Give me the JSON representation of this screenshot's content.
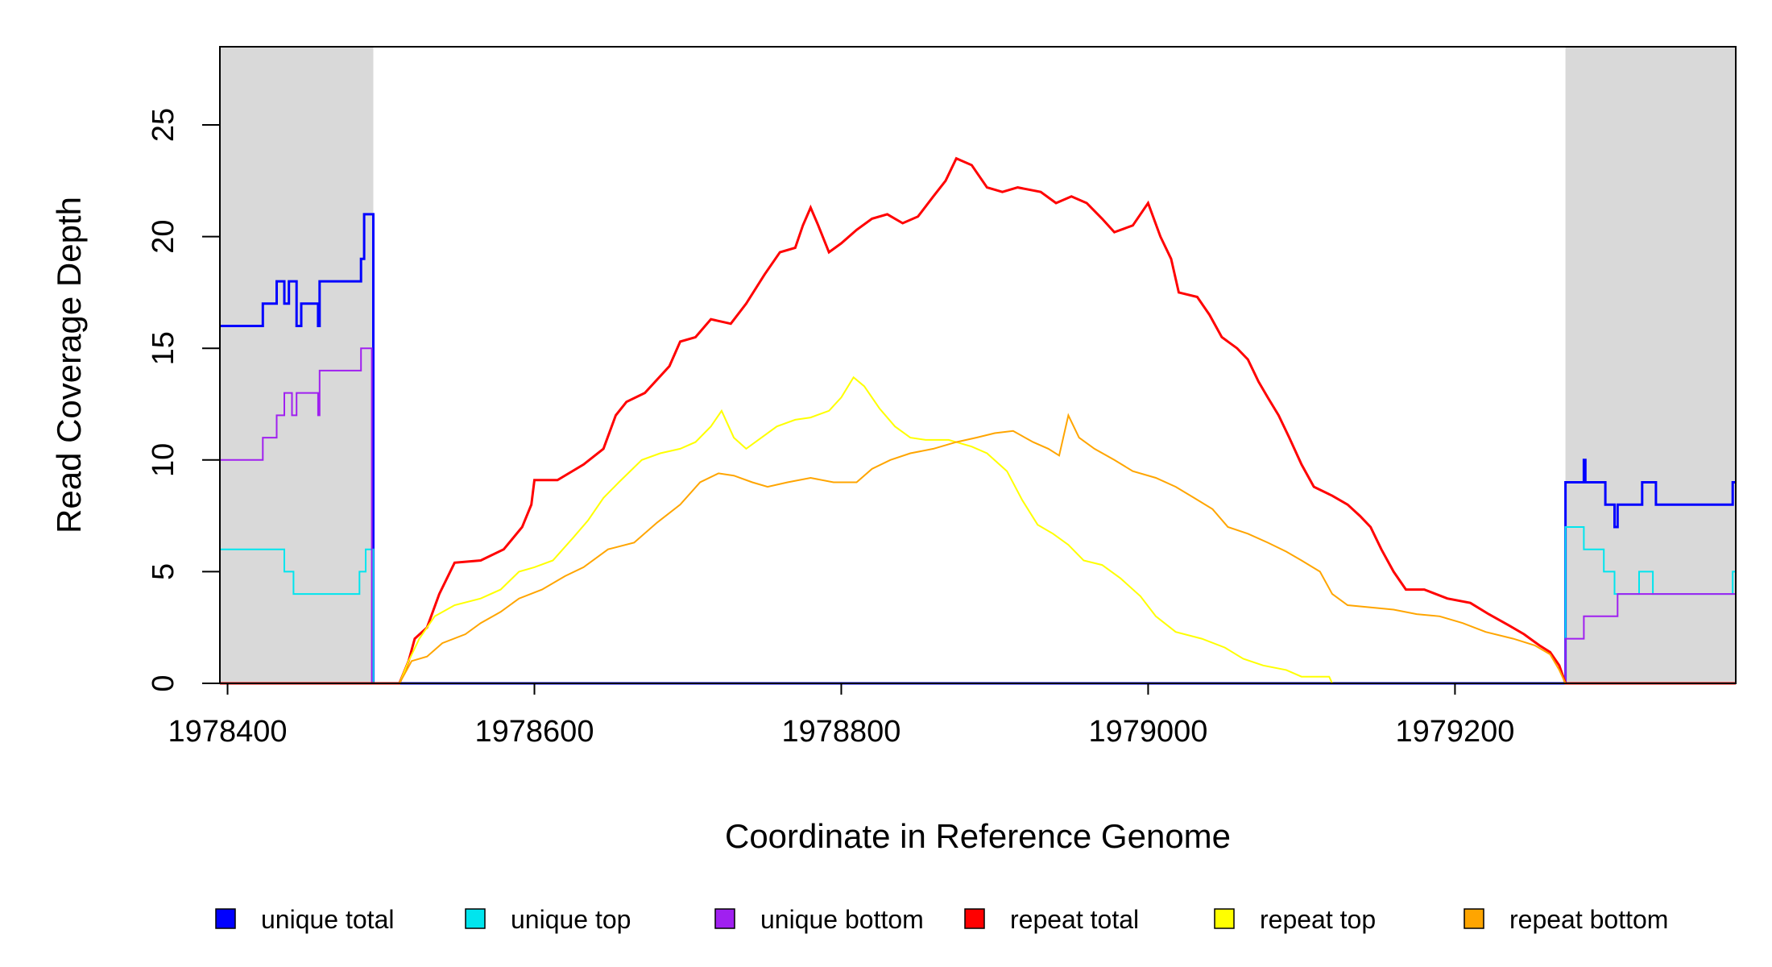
{
  "chart_data": {
    "type": "line",
    "title": "",
    "xlabel": "Coordinate in Reference Genome",
    "ylabel": "Read Coverage Depth",
    "xlim": [
      1978395,
      1979383
    ],
    "ylim": [
      0,
      28.5
    ],
    "xticks": [
      1978400,
      1978600,
      1978800,
      1979000,
      1979200
    ],
    "yticks": [
      0,
      5,
      10,
      15,
      20,
      25
    ],
    "grid": false,
    "legend_position": "bottom",
    "shaded_regions": [
      {
        "x": [
          1978395,
          1978495
        ],
        "color": "#d9d9d9"
      },
      {
        "x": [
          1979272,
          1979383
        ],
        "color": "#d9d9d9"
      }
    ],
    "series": [
      {
        "name": "unique total",
        "color": "#0000ff",
        "width": 3,
        "points": [
          [
            1978395,
            16
          ],
          [
            1978423,
            16
          ],
          [
            1978423,
            17
          ],
          [
            1978432,
            17
          ],
          [
            1978432,
            18
          ],
          [
            1978437,
            18
          ],
          [
            1978437,
            17
          ],
          [
            1978440,
            17
          ],
          [
            1978440,
            18
          ],
          [
            1978445,
            18
          ],
          [
            1978445,
            16
          ],
          [
            1978448,
            16
          ],
          [
            1978448,
            17
          ],
          [
            1978459,
            17
          ],
          [
            1978459,
            16
          ],
          [
            1978460,
            16
          ],
          [
            1978460,
            18
          ],
          [
            1978487,
            18
          ],
          [
            1978487,
            19
          ],
          [
            1978489,
            19
          ],
          [
            1978489,
            21
          ],
          [
            1978495,
            21
          ],
          [
            1978495,
            0
          ],
          [
            1979272,
            0
          ],
          [
            1979272,
            9
          ],
          [
            1979284,
            9
          ],
          [
            1979284,
            10
          ],
          [
            1979285,
            10
          ],
          [
            1979285,
            9
          ],
          [
            1979298,
            9
          ],
          [
            1979298,
            8
          ],
          [
            1979304,
            8
          ],
          [
            1979304,
            7
          ],
          [
            1979306,
            7
          ],
          [
            1979306,
            8
          ],
          [
            1979322,
            8
          ],
          [
            1979322,
            9
          ],
          [
            1979331,
            9
          ],
          [
            1979331,
            8
          ],
          [
            1979381,
            8
          ],
          [
            1979381,
            9
          ],
          [
            1979383,
            9
          ]
        ]
      },
      {
        "name": "unique top",
        "color": "#00e5ee",
        "width": 2,
        "points": [
          [
            1978395,
            6
          ],
          [
            1978437,
            6
          ],
          [
            1978437,
            5
          ],
          [
            1978443,
            5
          ],
          [
            1978443,
            4
          ],
          [
            1978486,
            4
          ],
          [
            1978486,
            5
          ],
          [
            1978490,
            5
          ],
          [
            1978490,
            6
          ],
          [
            1978495,
            6
          ],
          [
            1978495,
            0
          ],
          [
            1979272,
            0
          ],
          [
            1979272,
            7
          ],
          [
            1979284,
            7
          ],
          [
            1979284,
            6
          ],
          [
            1979297,
            6
          ],
          [
            1979297,
            5
          ],
          [
            1979304,
            5
          ],
          [
            1979304,
            4
          ],
          [
            1979320,
            4
          ],
          [
            1979320,
            5
          ],
          [
            1979329,
            5
          ],
          [
            1979329,
            4
          ],
          [
            1979381,
            4
          ],
          [
            1979381,
            5
          ],
          [
            1979383,
            5
          ]
        ]
      },
      {
        "name": "unique bottom",
        "color": "#a020f0",
        "width": 2,
        "points": [
          [
            1978395,
            10
          ],
          [
            1978423,
            10
          ],
          [
            1978423,
            11
          ],
          [
            1978432,
            11
          ],
          [
            1978432,
            12
          ],
          [
            1978437,
            12
          ],
          [
            1978437,
            13
          ],
          [
            1978442,
            13
          ],
          [
            1978442,
            12
          ],
          [
            1978445,
            12
          ],
          [
            1978445,
            13
          ],
          [
            1978459,
            13
          ],
          [
            1978459,
            12
          ],
          [
            1978460,
            12
          ],
          [
            1978460,
            14
          ],
          [
            1978487,
            14
          ],
          [
            1978487,
            15
          ],
          [
            1978494,
            15
          ],
          [
            1978494,
            0
          ],
          [
            1979272,
            0
          ],
          [
            1979272,
            2
          ],
          [
            1979284,
            2
          ],
          [
            1979284,
            3
          ],
          [
            1979306,
            3
          ],
          [
            1979306,
            4
          ],
          [
            1979383,
            4
          ]
        ]
      },
      {
        "name": "repeat total",
        "color": "#ff0000",
        "width": 3,
        "points": [
          [
            1978395,
            0
          ],
          [
            1978512,
            0
          ],
          [
            1978518,
            1
          ],
          [
            1978522,
            2
          ],
          [
            1978530,
            2.5
          ],
          [
            1978538,
            4
          ],
          [
            1978548,
            5.4
          ],
          [
            1978565,
            5.5
          ],
          [
            1978580,
            6
          ],
          [
            1978592,
            7
          ],
          [
            1978598,
            8
          ],
          [
            1978600,
            9.1
          ],
          [
            1978615,
            9.1
          ],
          [
            1978632,
            9.8
          ],
          [
            1978645,
            10.5
          ],
          [
            1978653,
            12
          ],
          [
            1978660,
            12.6
          ],
          [
            1978672,
            13
          ],
          [
            1978688,
            14.2
          ],
          [
            1978695,
            15.3
          ],
          [
            1978705,
            15.5
          ],
          [
            1978715,
            16.3
          ],
          [
            1978728,
            16.1
          ],
          [
            1978738,
            17
          ],
          [
            1978750,
            18.3
          ],
          [
            1978760,
            19.3
          ],
          [
            1978770,
            19.5
          ],
          [
            1978775,
            20.5
          ],
          [
            1978780,
            21.3
          ],
          [
            1978785,
            20.5
          ],
          [
            1978792,
            19.3
          ],
          [
            1978800,
            19.7
          ],
          [
            1978810,
            20.3
          ],
          [
            1978820,
            20.8
          ],
          [
            1978830,
            21
          ],
          [
            1978840,
            20.6
          ],
          [
            1978850,
            20.9
          ],
          [
            1978860,
            21.8
          ],
          [
            1978868,
            22.5
          ],
          [
            1978875,
            23.5
          ],
          [
            1978885,
            23.2
          ],
          [
            1978895,
            22.2
          ],
          [
            1978905,
            22
          ],
          [
            1978915,
            22.2
          ],
          [
            1978930,
            22
          ],
          [
            1978940,
            21.5
          ],
          [
            1978950,
            21.8
          ],
          [
            1978960,
            21.5
          ],
          [
            1978970,
            20.8
          ],
          [
            1978978,
            20.2
          ],
          [
            1978990,
            20.5
          ],
          [
            1979000,
            21.5
          ],
          [
            1979008,
            20
          ],
          [
            1979015,
            19
          ],
          [
            1979020,
            17.5
          ],
          [
            1979032,
            17.3
          ],
          [
            1979040,
            16.5
          ],
          [
            1979048,
            15.5
          ],
          [
            1979058,
            15
          ],
          [
            1979065,
            14.5
          ],
          [
            1979072,
            13.5
          ],
          [
            1979078,
            12.8
          ],
          [
            1979085,
            12
          ],
          [
            1979092,
            11
          ],
          [
            1979100,
            9.8
          ],
          [
            1979108,
            8.8
          ],
          [
            1979120,
            8.4
          ],
          [
            1979130,
            8
          ],
          [
            1979138,
            7.5
          ],
          [
            1979145,
            7
          ],
          [
            1979152,
            6
          ],
          [
            1979160,
            5
          ],
          [
            1979168,
            4.2
          ],
          [
            1979180,
            4.2
          ],
          [
            1979195,
            3.8
          ],
          [
            1979210,
            3.6
          ],
          [
            1979222,
            3.1
          ],
          [
            1979235,
            2.6
          ],
          [
            1979245,
            2.2
          ],
          [
            1979255,
            1.7
          ],
          [
            1979262,
            1.4
          ],
          [
            1979268,
            0.8
          ],
          [
            1979272,
            0
          ],
          [
            1979383,
            0
          ]
        ]
      },
      {
        "name": "repeat top",
        "color": "#ffff00",
        "width": 2,
        "points": [
          [
            1978395,
            0
          ],
          [
            1978512,
            0
          ],
          [
            1978518,
            1
          ],
          [
            1978525,
            2
          ],
          [
            1978535,
            3
          ],
          [
            1978548,
            3.5
          ],
          [
            1978565,
            3.8
          ],
          [
            1978578,
            4.2
          ],
          [
            1978590,
            5
          ],
          [
            1978600,
            5.2
          ],
          [
            1978612,
            5.5
          ],
          [
            1978625,
            6.5
          ],
          [
            1978635,
            7.3
          ],
          [
            1978645,
            8.3
          ],
          [
            1978655,
            9
          ],
          [
            1978670,
            10
          ],
          [
            1978682,
            10.3
          ],
          [
            1978695,
            10.5
          ],
          [
            1978705,
            10.8
          ],
          [
            1978715,
            11.5
          ],
          [
            1978722,
            12.2
          ],
          [
            1978730,
            11
          ],
          [
            1978738,
            10.5
          ],
          [
            1978748,
            11
          ],
          [
            1978758,
            11.5
          ],
          [
            1978770,
            11.8
          ],
          [
            1978780,
            11.9
          ],
          [
            1978792,
            12.2
          ],
          [
            1978800,
            12.8
          ],
          [
            1978808,
            13.7
          ],
          [
            1978815,
            13.3
          ],
          [
            1978825,
            12.3
          ],
          [
            1978835,
            11.5
          ],
          [
            1978845,
            11
          ],
          [
            1978855,
            10.9
          ],
          [
            1978870,
            10.9
          ],
          [
            1978885,
            10.6
          ],
          [
            1978895,
            10.3
          ],
          [
            1978908,
            9.5
          ],
          [
            1978918,
            8.2
          ],
          [
            1978928,
            7.1
          ],
          [
            1978938,
            6.7
          ],
          [
            1978948,
            6.2
          ],
          [
            1978958,
            5.5
          ],
          [
            1978970,
            5.3
          ],
          [
            1978982,
            4.7
          ],
          [
            1978995,
            3.9
          ],
          [
            1979005,
            3
          ],
          [
            1979018,
            2.3
          ],
          [
            1979035,
            2
          ],
          [
            1979050,
            1.6
          ],
          [
            1979062,
            1.1
          ],
          [
            1979075,
            0.8
          ],
          [
            1979090,
            0.6
          ],
          [
            1979100,
            0.3
          ],
          [
            1979118,
            0.3
          ],
          [
            1979120,
            0
          ],
          [
            1979383,
            0
          ]
        ]
      },
      {
        "name": "repeat bottom",
        "color": "#ffa500",
        "width": 2,
        "points": [
          [
            1978395,
            0
          ],
          [
            1978512,
            0
          ],
          [
            1978520,
            1
          ],
          [
            1978530,
            1.2
          ],
          [
            1978540,
            1.8
          ],
          [
            1978555,
            2.2
          ],
          [
            1978565,
            2.7
          ],
          [
            1978578,
            3.2
          ],
          [
            1978590,
            3.8
          ],
          [
            1978605,
            4.2
          ],
          [
            1978620,
            4.8
          ],
          [
            1978632,
            5.2
          ],
          [
            1978648,
            6
          ],
          [
            1978665,
            6.3
          ],
          [
            1978680,
            7.2
          ],
          [
            1978695,
            8
          ],
          [
            1978708,
            9
          ],
          [
            1978720,
            9.4
          ],
          [
            1978730,
            9.3
          ],
          [
            1978742,
            9
          ],
          [
            1978752,
            8.8
          ],
          [
            1978765,
            9
          ],
          [
            1978780,
            9.2
          ],
          [
            1978795,
            9
          ],
          [
            1978810,
            9
          ],
          [
            1978820,
            9.6
          ],
          [
            1978832,
            10
          ],
          [
            1978845,
            10.3
          ],
          [
            1978860,
            10.5
          ],
          [
            1978875,
            10.8
          ],
          [
            1978888,
            11
          ],
          [
            1978900,
            11.2
          ],
          [
            1978912,
            11.3
          ],
          [
            1978925,
            10.8
          ],
          [
            1978935,
            10.5
          ],
          [
            1978942,
            10.2
          ],
          [
            1978948,
            12
          ],
          [
            1978955,
            11
          ],
          [
            1978965,
            10.5
          ],
          [
            1978978,
            10
          ],
          [
            1978990,
            9.5
          ],
          [
            1979005,
            9.2
          ],
          [
            1979018,
            8.8
          ],
          [
            1979030,
            8.3
          ],
          [
            1979042,
            7.8
          ],
          [
            1979052,
            7
          ],
          [
            1979065,
            6.7
          ],
          [
            1979078,
            6.3
          ],
          [
            1979090,
            5.9
          ],
          [
            1979100,
            5.5
          ],
          [
            1979112,
            5
          ],
          [
            1979120,
            4
          ],
          [
            1979130,
            3.5
          ],
          [
            1979145,
            3.4
          ],
          [
            1979160,
            3.3
          ],
          [
            1979175,
            3.1
          ],
          [
            1979190,
            3
          ],
          [
            1979205,
            2.7
          ],
          [
            1979220,
            2.3
          ],
          [
            1979238,
            2
          ],
          [
            1979252,
            1.7
          ],
          [
            1979262,
            1.3
          ],
          [
            1979268,
            0.6
          ],
          [
            1979272,
            0
          ],
          [
            1979383,
            0
          ]
        ]
      }
    ]
  }
}
